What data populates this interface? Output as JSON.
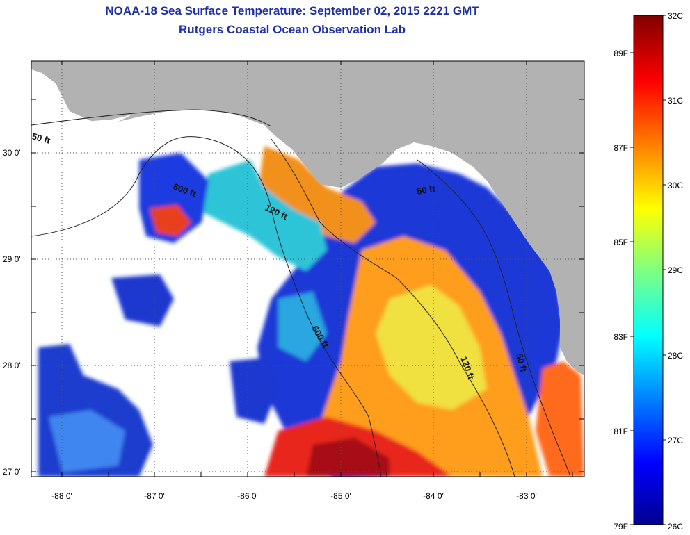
{
  "title": "NOAA-18 Sea Surface Temperature:  September 02, 2015 2221 GMT",
  "subtitle": "Rutgers Coastal Ocean Observation Lab",
  "map": {
    "lat_ticks": [
      "30 0'",
      "29 0'",
      "28 0'",
      "27 0'"
    ],
    "lon_ticks": [
      "-88 0'",
      "-87 0'",
      "-86 0'",
      "-85 0'",
      "-84 0'",
      "-83 0'"
    ],
    "contour_labels": [
      "50 ft",
      "600 ft",
      "120 ft",
      "600 ft",
      "50 ft",
      "120 ft",
      "50 ft"
    ],
    "land_color": "#b2b2b2",
    "cloud_color": "#ffffff"
  },
  "colorbar": {
    "celsius_labels": [
      "32C",
      "31C",
      "30C",
      "29C",
      "28C",
      "27C",
      "26C"
    ],
    "fahrenheit_labels": [
      "89F",
      "87F",
      "85F",
      "83F",
      "81F",
      "79F"
    ],
    "min_c": 26,
    "max_c": 32
  }
}
